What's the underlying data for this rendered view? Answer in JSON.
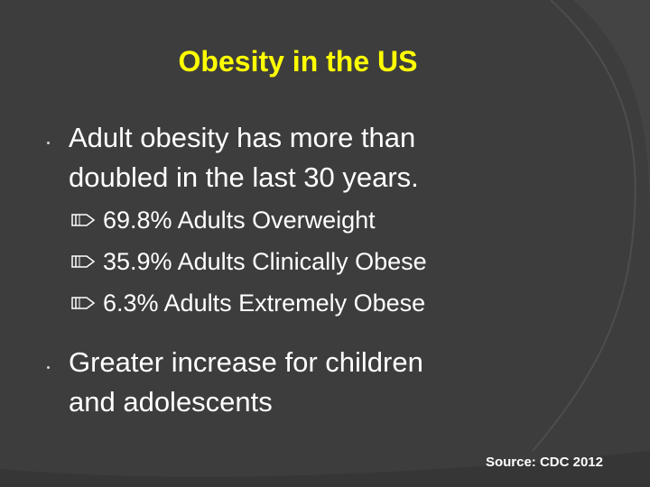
{
  "slide": {
    "title": "Obesity in the US",
    "bullets": [
      {
        "lines": [
          "Adult obesity has more than",
          "doubled in the last 30 years."
        ]
      },
      {
        "lines": [
          "Greater increase for children",
          "and adolescents"
        ]
      }
    ],
    "subbullets": [
      {
        "text": "69.8%  Adults Overweight"
      },
      {
        "text": "35.9%  Adults Clinically Obese"
      },
      {
        "text": " 6.3%  Adults Extremely Obese"
      }
    ],
    "source": "Source: CDC 2012",
    "icons": {
      "bullet": "dot-bullet-icon",
      "subbullet": "ribbon-bullet-icon"
    },
    "colors": {
      "background": "#3d3d3d",
      "title": "#ffff00",
      "text": "#ffffff",
      "arc": "#4a4a4a"
    }
  }
}
